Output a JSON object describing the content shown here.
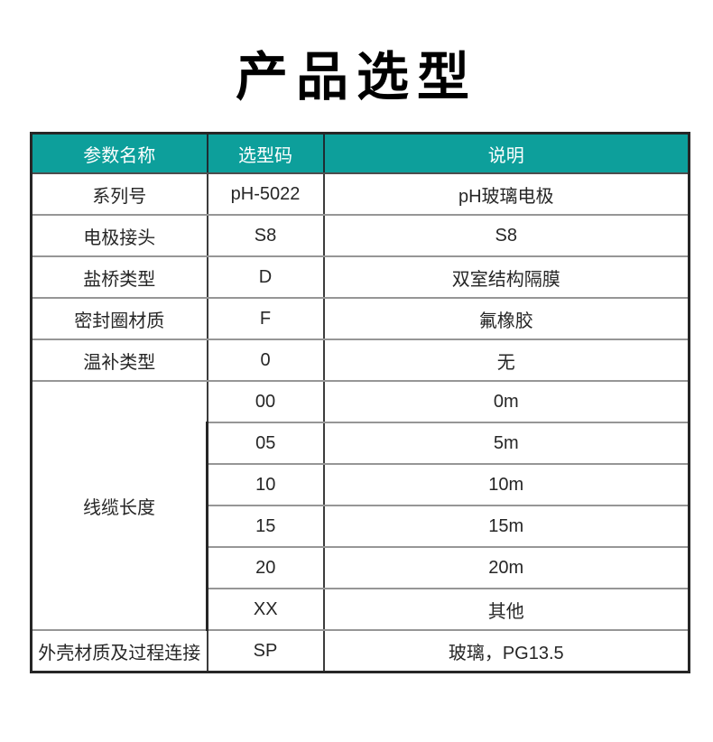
{
  "page": {
    "title": "产品选型"
  },
  "theme": {
    "header_bg": "#0d9f9b",
    "header_text": "#ffffff",
    "body_text": "#262626",
    "outer_border": "#262626",
    "row_divider": "#969696",
    "col_divider": "#3c3c3c"
  },
  "table": {
    "headers": {
      "param": "参数名称",
      "code": "选型码",
      "desc": "说明"
    },
    "rows": [
      {
        "param": "系列号",
        "code": "pH-5022",
        "desc": "pH玻璃电极"
      },
      {
        "param": "电极接头",
        "code": "S8",
        "desc": "S8"
      },
      {
        "param": "盐桥类型",
        "code": "D",
        "desc": "双室结构隔膜"
      },
      {
        "param": "密封圈材质",
        "code": "F",
        "desc": "氟橡胶"
      },
      {
        "param": "温补类型",
        "code": "0",
        "desc": "无"
      },
      {
        "param": "线缆长度",
        "options": [
          {
            "code": "00",
            "desc": "0m"
          },
          {
            "code": "05",
            "desc": "5m"
          },
          {
            "code": "10",
            "desc": "10m"
          },
          {
            "code": "15",
            "desc": "15m"
          },
          {
            "code": "20",
            "desc": "20m"
          },
          {
            "code": "XX",
            "desc": "其他"
          }
        ]
      },
      {
        "param": "外壳材质及过程连接",
        "code": "SP",
        "desc": "玻璃，PG13.5"
      }
    ]
  }
}
